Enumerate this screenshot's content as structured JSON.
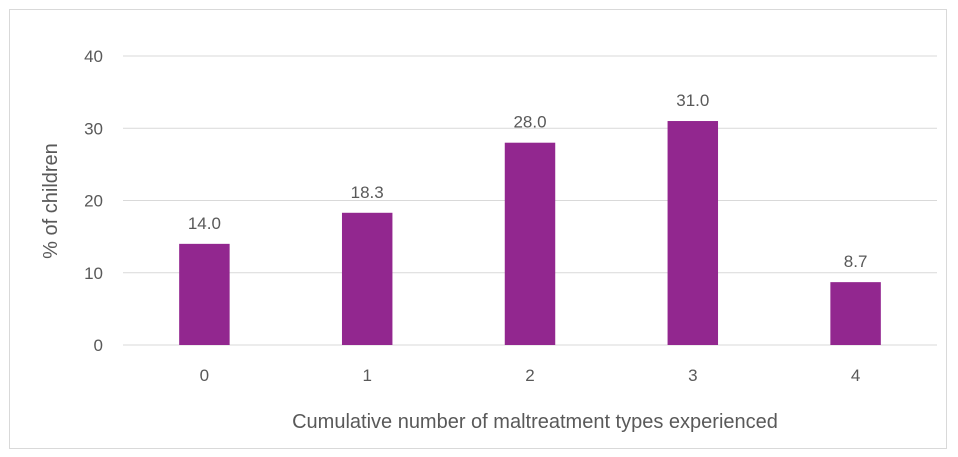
{
  "chart_data": {
    "type": "bar",
    "title": "",
    "xlabel": "Cumulative number of maltreatment types experienced",
    "ylabel": "% of children",
    "categories": [
      "0",
      "1",
      "2",
      "3",
      "4"
    ],
    "values": [
      14.0,
      18.3,
      28.0,
      31.0,
      8.7
    ],
    "data_labels": [
      "14.0",
      "18.3",
      "28.0",
      "31.0",
      "8.7"
    ],
    "ylim": [
      0,
      40
    ],
    "yticks": [
      0,
      10,
      20,
      30,
      40
    ],
    "grid": true,
    "legend": "none",
    "bar_color": "#92278F",
    "grid_color": "#d9d9d9"
  }
}
